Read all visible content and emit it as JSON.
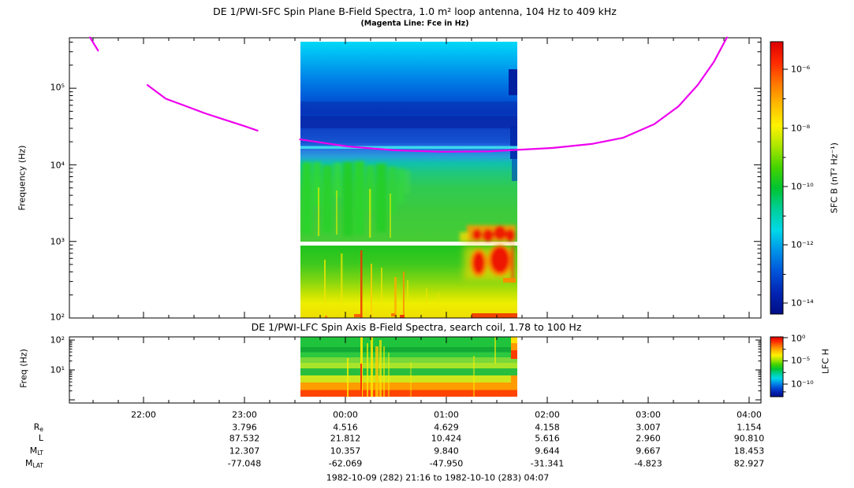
{
  "header": {
    "title": "DE 1/PWI-SFC  Spin Plane B-Field Spectra, 1.0 m² loop antenna, 104 Hz to 409 kHz",
    "subtitle": "(Magenta Line: Fce in Hz)"
  },
  "top_panel": {
    "ylabel": "Frequency (Hz)",
    "yticks": [
      "10⁵",
      "10⁴",
      "10³",
      "10²"
    ],
    "colorbar": {
      "label": "SFC B (nT² Hz⁻¹)",
      "ticks": [
        "10⁻⁶",
        "10⁻⁸",
        "10⁻¹⁰",
        "10⁻¹²",
        "10⁻¹⁴"
      ]
    }
  },
  "bottom_panel": {
    "title": "DE 1/PWI-LFC  Spin Axis B-Field Spectra, search coil, 1.78 to 100 Hz",
    "ylabel": "Freq (Hz)",
    "yticks": [
      "10²",
      "10¹"
    ],
    "colorbar": {
      "label": "LFC H",
      "ticks": [
        "10⁰",
        "10⁻⁵",
        "10⁻¹⁰"
      ]
    }
  },
  "xaxis": {
    "time_ticks": [
      "22:00",
      "23:00",
      "00:00",
      "01:00",
      "02:00",
      "03:00",
      "04:00"
    ]
  },
  "ephemeris": {
    "row_labels": [
      {
        "main": "R",
        "sub": "e"
      },
      {
        "main": "L",
        "sub": ""
      },
      {
        "main": "M",
        "sub": "LT"
      },
      {
        "main": "M",
        "sub": "LAT"
      }
    ],
    "re": [
      "3.796",
      "4.516",
      "4.629",
      "4.158",
      "3.007",
      "1.154"
    ],
    "l": [
      "87.532",
      "21.812",
      "10.424",
      "5.616",
      "2.960",
      "90.810"
    ],
    "mlt": [
      "12.307",
      "10.357",
      "9.840",
      "9.644",
      "9.667",
      "18.453"
    ],
    "mlat": [
      "-77.048",
      "-62.069",
      "-47.950",
      "-31.341",
      "-4.823",
      "82.927"
    ],
    "footer": "1982-10-09 (282) 21:16 to 1982-10-10 (283) 04:07"
  },
  "colors": {
    "fce_line": "#ee00ee",
    "axis": "#000000",
    "rainbow_stops": [
      "#dd0000",
      "#ff2a00",
      "#ff7700",
      "#ffbb00",
      "#fff200",
      "#aae600",
      "#44d400",
      "#00c432",
      "#00cf9a",
      "#00d8e8",
      "#0092e8",
      "#0052d8",
      "#0024b2",
      "#000e86"
    ]
  },
  "chart_data": [
    {
      "type": "heatmap",
      "title": "DE 1/PWI-SFC  Spin Plane B-Field Spectra, 1.0 m² loop antenna, 104 Hz to 409 kHz",
      "subtitle": "(Magenta Line: Fce in Hz)",
      "ylabel": "Frequency (Hz)",
      "yscale": "log",
      "ylim_hz": [
        100,
        470000
      ],
      "x_ticks": [
        "22:00",
        "23:00",
        "00:00",
        "01:00",
        "02:00",
        "03:00",
        "04:00"
      ],
      "x_range_ut": [
        "21:16",
        "04:07"
      ],
      "data_coverage_ut": [
        "23:33",
        "01:42"
      ],
      "value_scale": {
        "label": "SFC B (nT² Hz⁻¹)",
        "ticks_log10": [
          -6,
          -8,
          -10,
          -12,
          -14
        ]
      },
      "legend_position": "right-colorbar",
      "grid": false,
      "fce_line_segments_hour_hz": [
        [
          [
            21.47,
            460000
          ],
          [
            21.55,
            310000
          ]
        ],
        [
          [
            22.04,
            110000
          ],
          [
            22.22,
            73000
          ],
          [
            22.41,
            59000
          ],
          [
            22.61,
            47000
          ],
          [
            22.8,
            39000
          ],
          [
            23.0,
            32000
          ],
          [
            23.13,
            28000
          ]
        ],
        [
          [
            23.55,
            21500
          ],
          [
            24.02,
            17400
          ],
          [
            24.48,
            15500
          ],
          [
            24.95,
            14800
          ],
          [
            25.42,
            15000
          ],
          [
            26.05,
            16600
          ],
          [
            26.44,
            18700
          ],
          [
            26.75,
            22500
          ],
          [
            27.06,
            34000
          ],
          [
            27.3,
            58000
          ],
          [
            27.49,
            110000
          ],
          [
            27.65,
            220000
          ],
          [
            27.78,
            460000
          ]
        ]
      ],
      "features": [
        "cyan-to-blue continuum 20-400 kHz fading downward in intensity",
        "dark blue quiet bands between about 25 and 60 kHz",
        "narrow cyan emission band near 18 kHz across the whole data interval",
        "patchy intense green chorus/hiss 1.5-10 kHz from 23:33 to about 00:40",
        "orange-red intense emission below ~1.5 kHz from about 01:15 to 01:40",
        "broadband green-to-yellow hiss 100 Hz to 1 kHz throughout, red bursts at the bottom edge",
        "white data gap band at ~1 kHz separating receiver bands"
      ]
    },
    {
      "type": "heatmap",
      "title": "DE 1/PWI-LFC  Spin Axis B-Field Spectra, search coil, 1.78 to 100 Hz",
      "ylabel": "Freq (Hz)",
      "yscale": "log",
      "ylim_hz": [
        1.78,
        100
      ],
      "x_ticks": [
        "22:00",
        "23:00",
        "00:00",
        "01:00",
        "02:00",
        "03:00",
        "04:00"
      ],
      "data_coverage_ut": [
        "23:33",
        "01:42"
      ],
      "value_scale": {
        "label": "LFC H",
        "ticks_log10": [
          0,
          -5,
          -10
        ]
      },
      "features": [
        "layered green / light-green / yellow-green bands 10-100 Hz",
        "orange then red-orange intensification below about 5 Hz",
        "cluster of yellow-red vertical bursts near 00:15-00:40",
        "isolated red vertical streak near 00:09",
        "yellow/orange/red blocks at the trailing edge of the data interval"
      ]
    },
    {
      "type": "table",
      "row_labels": [
        "Re",
        "L",
        "MLT",
        "MLAT"
      ],
      "columns": [
        "23:00",
        "00:00",
        "01:00",
        "02:00",
        "03:00",
        "04:00"
      ],
      "rows": [
        [
          3.796,
          4.516,
          4.629,
          4.158,
          3.007,
          1.154
        ],
        [
          87.532,
          21.812,
          10.424,
          5.616,
          2.96,
          90.81
        ],
        [
          12.307,
          10.357,
          9.84,
          9.644,
          9.667,
          18.453
        ],
        [
          -77.048,
          -62.069,
          -47.95,
          -31.341,
          -4.823,
          82.927
        ]
      ],
      "footer": "1982-10-09 (282) 21:16 to 1982-10-10 (283) 04:07"
    }
  ]
}
